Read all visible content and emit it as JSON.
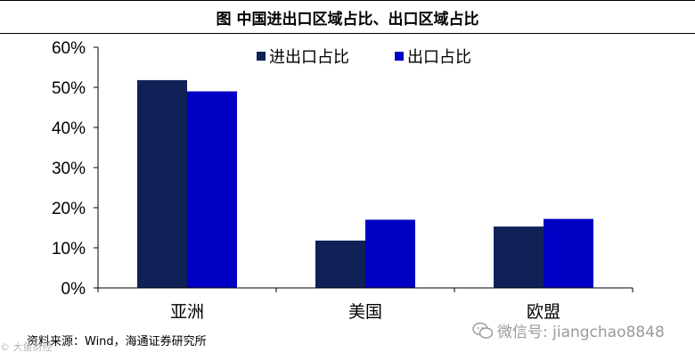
{
  "chart_data": {
    "type": "bar",
    "title": "图 中国进出口区域占比、出口区域占比",
    "categories": [
      "亚洲",
      "美国",
      "欧盟"
    ],
    "series": [
      {
        "name": "进出口占比",
        "color": "#0f2157",
        "values": [
          51.8,
          11.8,
          15.3
        ]
      },
      {
        "name": "出口占比",
        "color": "#0000c4",
        "values": [
          49.0,
          17.0,
          17.2
        ]
      }
    ],
    "yticks": [
      "0%",
      "10%",
      "20%",
      "30%",
      "40%",
      "50%",
      "60%"
    ],
    "ylim": [
      0,
      60
    ],
    "legend_position": "top-right"
  },
  "source_note": "资料来源：Wind，海通证券研究所",
  "watermark": "微信号: jiangchao8848",
  "watermark_left": "© 大鱼财经"
}
